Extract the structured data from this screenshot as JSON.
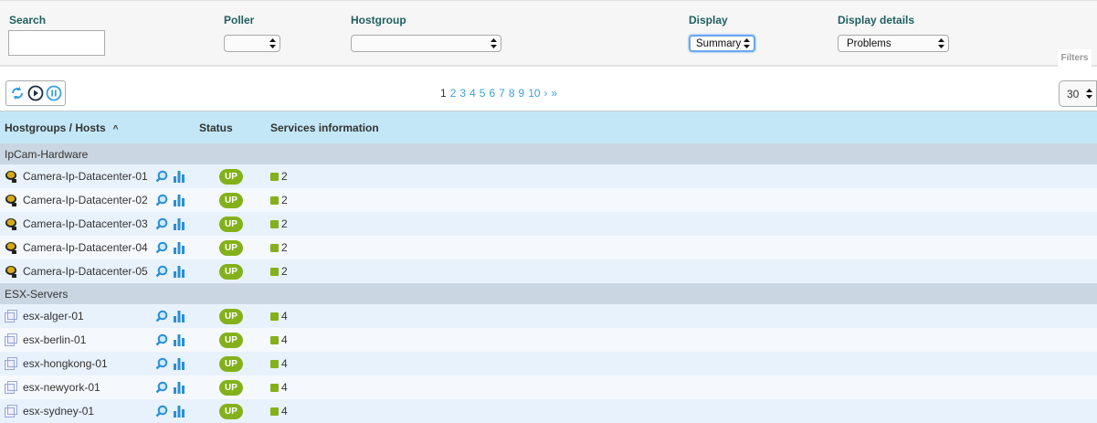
{
  "filters": {
    "search_label": "Search",
    "search_value": "",
    "poller_label": "Poller",
    "poller_value": "",
    "hostgroup_label": "Hostgroup",
    "hostgroup_value": "",
    "display_label": "Display",
    "display_value": "Summary",
    "details_label": "Display details",
    "details_value": "Problems",
    "filters_button": "Filters"
  },
  "pagination": {
    "current": "1",
    "pages": [
      "2",
      "3",
      "4",
      "5",
      "6",
      "7",
      "8",
      "9",
      "10"
    ],
    "next": "›",
    "last": "»",
    "per_page": "30"
  },
  "table": {
    "columns": {
      "hosts": "Hostgroups / Hosts",
      "sort_indicator": "^",
      "status": "Status",
      "services": "Services information"
    },
    "groups": [
      {
        "name": "IpCam-Hardware",
        "icon": "camera-icon",
        "hosts": [
          {
            "name": "Camera-Ip-Datacenter-01",
            "status": "UP",
            "ok": "2"
          },
          {
            "name": "Camera-Ip-Datacenter-02",
            "status": "UP",
            "ok": "2"
          },
          {
            "name": "Camera-Ip-Datacenter-03",
            "status": "UP",
            "ok": "2"
          },
          {
            "name": "Camera-Ip-Datacenter-04",
            "status": "UP",
            "ok": "2"
          },
          {
            "name": "Camera-Ip-Datacenter-05",
            "status": "UP",
            "ok": "2"
          }
        ]
      },
      {
        "name": "ESX-Servers",
        "icon": "server-icon",
        "hosts": [
          {
            "name": "esx-alger-01",
            "status": "UP",
            "ok": "4"
          },
          {
            "name": "esx-berlin-01",
            "status": "UP",
            "ok": "4"
          },
          {
            "name": "esx-hongkong-01",
            "status": "UP",
            "ok": "4"
          },
          {
            "name": "esx-newyork-01",
            "status": "UP",
            "ok": "4"
          },
          {
            "name": "esx-sydney-01",
            "status": "UP",
            "ok": "4"
          }
        ]
      }
    ]
  },
  "colors": {
    "up": "#84b11b",
    "header": "#c4e7f7",
    "group": "#cad7e3",
    "link": "#3aa0dd"
  }
}
